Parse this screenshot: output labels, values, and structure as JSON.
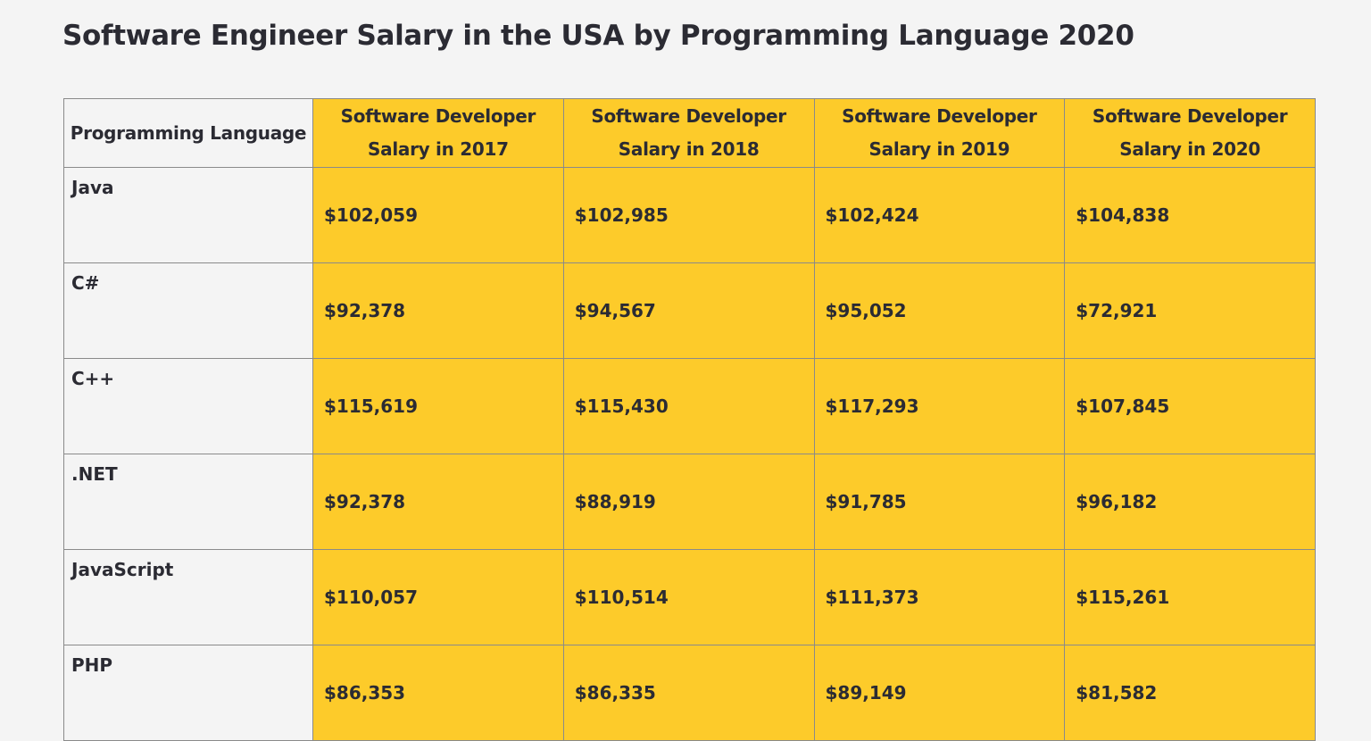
{
  "title": "Software Engineer Salary in the USA by Programming Language 2020",
  "colors": {
    "highlight": "#fdcb2a",
    "background": "#f4f4f4",
    "text": "#2b2b33"
  },
  "table": {
    "headers": [
      "Programming Language",
      "Software Developer Salary in 2017",
      "Software Developer Salary in 2018",
      "Software Developer Salary in 2019",
      "Software Developer Salary in 2020"
    ],
    "rows": [
      {
        "language": "Java",
        "values": [
          "$102,059",
          "$102,985",
          "$102,424",
          "$104,838"
        ]
      },
      {
        "language": "C#",
        "values": [
          "$92,378",
          "$94,567",
          "$95,052",
          "$72,921"
        ]
      },
      {
        "language": "C++",
        "values": [
          "$115,619",
          "$115,430",
          "$117,293",
          "$107,845"
        ]
      },
      {
        "language": ".NET",
        "values": [
          "$92,378",
          "$88,919",
          "$91,785",
          "$96,182"
        ]
      },
      {
        "language": "JavaScript",
        "values": [
          "$110,057",
          "$110,514",
          "$111,373",
          "$115,261"
        ]
      },
      {
        "language": "PHP",
        "values": [
          "$86,353",
          "$86,335",
          "$89,149",
          "$81,582"
        ]
      }
    ]
  }
}
